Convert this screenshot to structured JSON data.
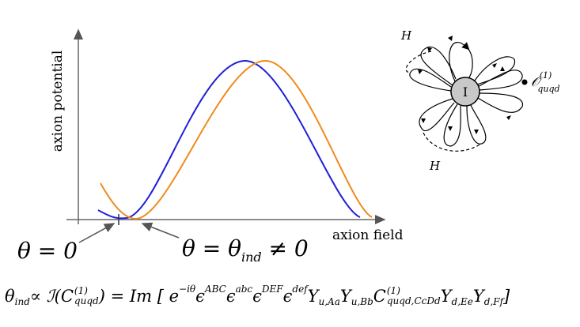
{
  "plot": {
    "y_label": "axion potential",
    "x_label": "axion field",
    "annotation_left": "θ = 0",
    "annotation_right": {
      "base": "θ = θ",
      "sub": "ind",
      "tail": " ≠ 0"
    }
  },
  "diagram": {
    "center_label": "I",
    "higgs_top": "H",
    "higgs_bottom": "H",
    "operator": {
      "base": "𝒪",
      "sup": "(1)",
      "sub": "quqd"
    }
  },
  "equation": [
    {
      "base": "θ",
      "sub": "ind"
    },
    {
      "base": " ∝ ℐ(C",
      "sup": "(1)",
      "sub": "quqd"
    },
    {
      "base": ") = Im [ e",
      "sup": "−iθ"
    },
    {
      "base": "ϵ",
      "sup": "ABC"
    },
    {
      "base": "ϵ",
      "sup": "abc"
    },
    {
      "base": "ϵ",
      "sup": "DEF"
    },
    {
      "base": "ϵ",
      "sup": "def"
    },
    {
      "base": "Y",
      "sub": "u,Aa"
    },
    {
      "base": "Y",
      "sub": "u,Bb"
    },
    {
      "base": "C",
      "sup": "(1)",
      "sub": "quqd,CcDd"
    },
    {
      "base": "Y",
      "sub": "d,Ee"
    },
    {
      "base": "Y",
      "sub": "d,Ff"
    },
    {
      "base": " ]"
    }
  ]
}
